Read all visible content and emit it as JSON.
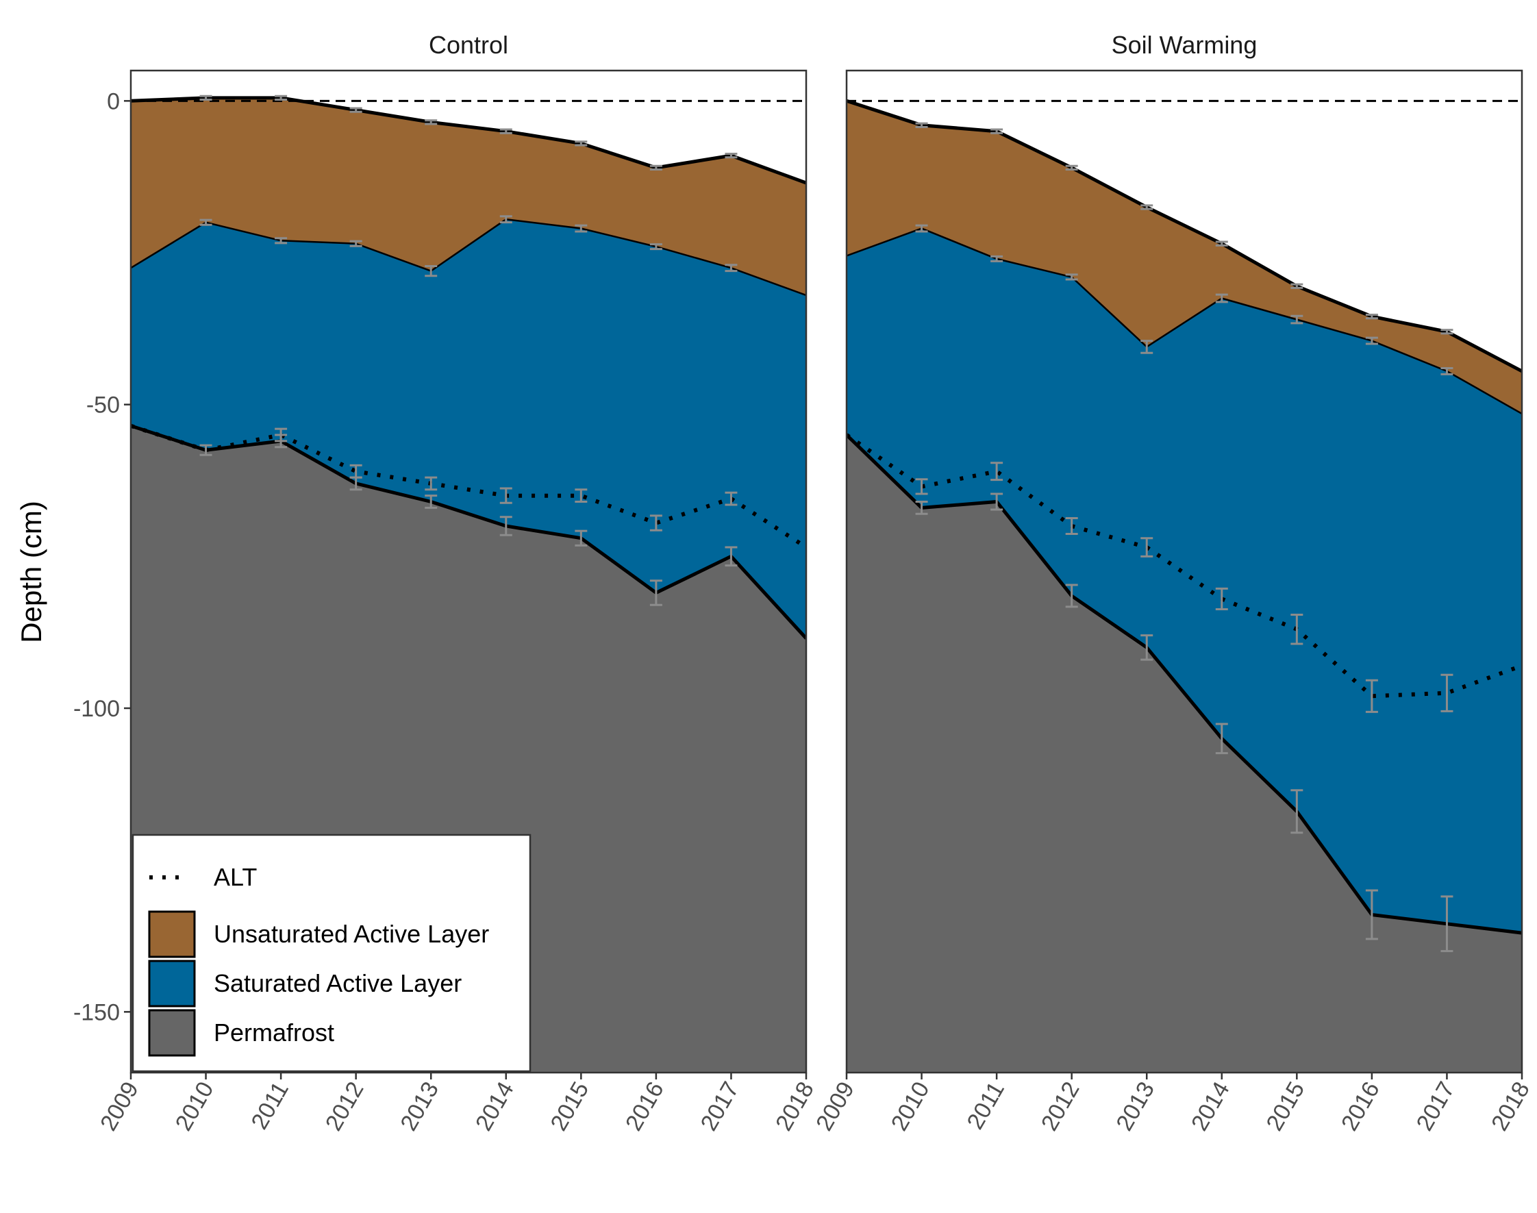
{
  "chart_data": {
    "type": "area",
    "ylabel": "Depth (cm)",
    "ylim": [
      -160,
      5
    ],
    "y_ticks": [
      0,
      -50,
      -100,
      -150
    ],
    "y_tick_labels": [
      "0",
      "-50",
      "-100",
      "-150"
    ],
    "x_ticks": [
      "2009",
      "2010",
      "2011",
      "2012",
      "2013",
      "2014",
      "2015",
      "2016",
      "2017",
      "2018"
    ],
    "grid": false,
    "legend_position": "bottom-left",
    "colors": {
      "unsaturated": "#996633",
      "saturated": "#006699",
      "permafrost": "#666666",
      "errorbar": "#8c8c8c",
      "reference_line": "#000000"
    },
    "legend": [
      {
        "key": "alt",
        "label": "ALT",
        "style": "dotted-line"
      },
      {
        "key": "unsaturated",
        "label": "Unsaturated Active Layer",
        "style": "fill"
      },
      {
        "key": "saturated",
        "label": "Saturated Active Layer",
        "style": "fill"
      },
      {
        "key": "permafrost",
        "label": "Permafrost",
        "style": "fill"
      }
    ],
    "panels": [
      {
        "title": "Control",
        "x": [
          2009,
          2010,
          2011,
          2012,
          2013,
          2014,
          2015,
          2016,
          2017,
          2018
        ],
        "surface": [
          0,
          0.5,
          0.5,
          -1.5,
          -3.5,
          -5,
          -7,
          -11,
          -9,
          -13.5
        ],
        "water_table": [
          -27.5,
          -20,
          -23,
          -23.5,
          -28,
          -19.5,
          -21,
          -24,
          -27.5,
          -32
        ],
        "thaw_depth": [
          -53.5,
          -57.5,
          -56,
          -63,
          -66,
          -70,
          -72,
          -81,
          -75,
          -88.5
        ],
        "alt": [
          -53.5,
          -57.5,
          -55,
          -61,
          -63,
          -65,
          -65,
          -69.5,
          -65.5,
          -73.5
        ],
        "errors": {
          "surface": [
            0,
            0.3,
            0.3,
            0.3,
            0.3,
            0.3,
            0.3,
            0.3,
            0.3,
            0
          ],
          "water_table": [
            0,
            0.4,
            0.4,
            0.4,
            0.8,
            0.5,
            0.5,
            0.4,
            0.5,
            0
          ],
          "thaw_depth": [
            0,
            0.8,
            1.0,
            1.0,
            1.0,
            1.5,
            1.2,
            2.0,
            1.5,
            0
          ],
          "alt": [
            0,
            0,
            1.0,
            1.0,
            1.0,
            1.2,
            1.0,
            1.2,
            1.0,
            0
          ]
        }
      },
      {
        "title": "Soil Warming",
        "x": [
          2009,
          2010,
          2011,
          2012,
          2013,
          2014,
          2015,
          2016,
          2017,
          2018
        ],
        "surface": [
          0,
          -4,
          -5,
          -11,
          -17.5,
          -23.5,
          -30.5,
          -35.5,
          -38,
          -44.5
        ],
        "water_table": [
          -25.5,
          -21,
          -26,
          -29,
          -40.5,
          -32.5,
          -36,
          -39.5,
          -44.5,
          -51.5
        ],
        "thaw_depth": [
          -55,
          -67,
          -66,
          -81.5,
          -90,
          -105,
          -117,
          -134,
          -135.5,
          -137
        ],
        "alt": [
          -55,
          -63.5,
          -61,
          -70,
          -73.5,
          -82,
          -87,
          -98,
          -97.5,
          -93
        ],
        "errors": {
          "surface": [
            0,
            0.3,
            0.3,
            0.3,
            0.3,
            0.3,
            0.3,
            0.3,
            0.3,
            0
          ],
          "water_table": [
            0,
            0.5,
            0.4,
            0.4,
            1.0,
            0.6,
            0.6,
            0.5,
            0.5,
            0
          ],
          "thaw_depth": [
            0,
            1.0,
            1.3,
            1.8,
            2.0,
            2.4,
            3.5,
            4.0,
            4.5,
            0
          ],
          "alt": [
            0,
            1.2,
            1.4,
            1.3,
            1.5,
            1.7,
            2.4,
            2.6,
            3.0,
            0
          ]
        }
      }
    ]
  }
}
